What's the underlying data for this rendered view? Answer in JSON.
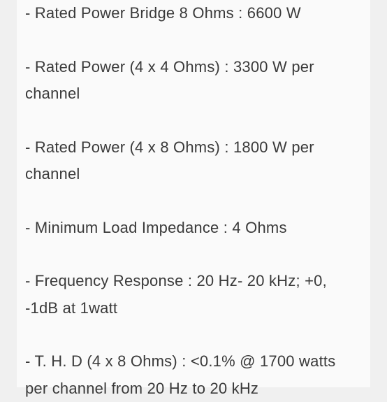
{
  "specs": [
    {
      "text": "- Rated Power Bridge 8 Ohms : 6600 W"
    },
    {
      "text": "- Rated Power (4 x 4 Ohms) : 3300 W per channel"
    },
    {
      "text": "- Rated Power (4 x 8 Ohms) : 1800 W per channel"
    },
    {
      "text": "- Minimum Load Impedance : 4 Ohms"
    },
    {
      "text": "- Frequency Response : 20 Hz- 20 kHz; +0, -1dB at 1watt"
    },
    {
      "text": "- T. H. D (4 x 8 Ohms) : <0.1% @ 1700 watts per channel from 20 Hz to 20 kHz"
    }
  ],
  "colors": {
    "page_background": "#f0f0f0",
    "content_background": "#fafafa",
    "text_color": "#3a3a3a"
  },
  "typography": {
    "font_size": 22,
    "line_height": 1.75,
    "font_weight": 300
  }
}
